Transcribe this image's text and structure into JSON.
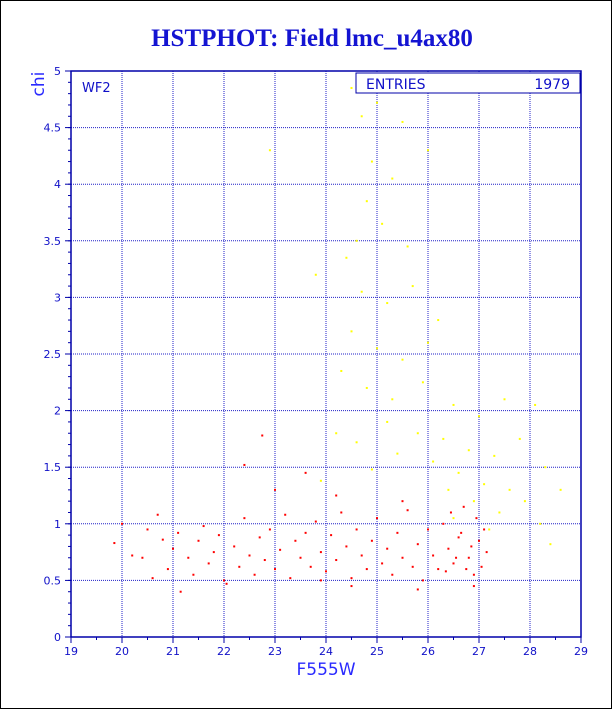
{
  "chart_data": {
    "type": "scatter",
    "title": "HSTPHOT: Field lmc_u4ax80",
    "xlabel": "F555W",
    "ylabel": "chi",
    "panel_label": "WF2",
    "stats_box": {
      "label": "ENTRIES",
      "value": "1979"
    },
    "xlim": [
      19,
      29
    ],
    "ylim": [
      0,
      5
    ],
    "xticks": [
      "19",
      "20",
      "21",
      "22",
      "23",
      "24",
      "25",
      "26",
      "27",
      "28",
      "29"
    ],
    "yticks": [
      "0",
      "0.5",
      "1",
      "1.5",
      "2",
      "2.5",
      "3",
      "3.5",
      "4",
      "4.5",
      "5"
    ],
    "grid": true,
    "colors": {
      "title": "#1414d2",
      "axis": "#0000aa",
      "grid": "#2020c8",
      "series_red": "#ff0000",
      "series_yellow": "#ffff00"
    },
    "series": [
      {
        "color": "#ff0000",
        "points": [
          [
            19.85,
            0.83
          ],
          [
            20.0,
            1.0
          ],
          [
            20.2,
            0.72
          ],
          [
            20.4,
            0.7
          ],
          [
            20.5,
            0.95
          ],
          [
            20.6,
            0.52
          ],
          [
            20.7,
            1.08
          ],
          [
            20.8,
            0.86
          ],
          [
            20.9,
            0.6
          ],
          [
            21.0,
            0.78
          ],
          [
            21.1,
            0.92
          ],
          [
            21.15,
            0.4
          ],
          [
            21.3,
            0.7
          ],
          [
            21.4,
            0.55
          ],
          [
            21.5,
            0.85
          ],
          [
            21.6,
            0.98
          ],
          [
            21.7,
            0.65
          ],
          [
            21.8,
            0.75
          ],
          [
            21.9,
            0.9
          ],
          [
            22.0,
            0.5
          ],
          [
            22.05,
            0.47
          ],
          [
            22.2,
            0.8
          ],
          [
            22.3,
            0.62
          ],
          [
            22.4,
            1.05
          ],
          [
            22.5,
            0.72
          ],
          [
            22.6,
            0.55
          ],
          [
            22.7,
            0.88
          ],
          [
            22.75,
            1.78
          ],
          [
            22.8,
            0.68
          ],
          [
            22.9,
            0.95
          ],
          [
            23.0,
            0.6
          ],
          [
            23.1,
            0.77
          ],
          [
            23.2,
            1.08
          ],
          [
            23.3,
            0.52
          ],
          [
            23.4,
            0.85
          ],
          [
            23.5,
            0.7
          ],
          [
            23.6,
            0.92
          ],
          [
            23.7,
            0.62
          ],
          [
            23.8,
            1.02
          ],
          [
            23.9,
            0.75
          ],
          [
            24.0,
            0.58
          ],
          [
            24.1,
            0.9
          ],
          [
            24.2,
            0.68
          ],
          [
            24.3,
            1.1
          ],
          [
            24.4,
            0.8
          ],
          [
            24.5,
            0.52
          ],
          [
            24.6,
            0.95
          ],
          [
            24.7,
            0.72
          ],
          [
            24.8,
            0.6
          ],
          [
            24.9,
            0.85
          ],
          [
            25.0,
            1.05
          ],
          [
            25.1,
            0.65
          ],
          [
            25.2,
            0.78
          ],
          [
            25.3,
            0.55
          ],
          [
            25.4,
            0.92
          ],
          [
            25.5,
            0.7
          ],
          [
            25.6,
            1.12
          ],
          [
            25.7,
            0.62
          ],
          [
            25.8,
            0.82
          ],
          [
            25.9,
            0.5
          ],
          [
            26.0,
            0.95
          ],
          [
            26.1,
            0.72
          ],
          [
            26.2,
            0.6
          ],
          [
            26.3,
            1.0
          ],
          [
            26.4,
            0.78
          ],
          [
            26.5,
            0.65
          ],
          [
            26.6,
            0.88
          ],
          [
            26.7,
            1.15
          ],
          [
            26.8,
            0.7
          ],
          [
            26.9,
            0.55
          ],
          [
            27.0,
            0.85
          ],
          [
            27.05,
            0.62
          ],
          [
            27.1,
            0.95
          ],
          [
            27.15,
            0.75
          ],
          [
            26.95,
            1.05
          ],
          [
            26.85,
            0.8
          ],
          [
            26.75,
            0.6
          ],
          [
            26.65,
            0.92
          ],
          [
            26.55,
            0.7
          ],
          [
            26.45,
            1.1
          ],
          [
            26.35,
            0.58
          ],
          [
            23.0,
            1.3
          ],
          [
            24.2,
            1.25
          ],
          [
            25.5,
            1.2
          ],
          [
            22.4,
            1.52
          ],
          [
            23.6,
            1.45
          ],
          [
            26.9,
            0.45
          ],
          [
            25.8,
            0.42
          ],
          [
            24.5,
            0.45
          ],
          [
            23.9,
            0.5
          ]
        ]
      },
      {
        "color": "#ffff00",
        "points": [
          [
            24.5,
            4.85
          ],
          [
            24.7,
            4.6
          ],
          [
            25.0,
            4.72
          ],
          [
            25.5,
            4.55
          ],
          [
            24.9,
            4.2
          ],
          [
            25.3,
            4.05
          ],
          [
            26.0,
            4.3
          ],
          [
            24.8,
            3.85
          ],
          [
            25.1,
            3.65
          ],
          [
            25.6,
            3.45
          ],
          [
            24.4,
            3.35
          ],
          [
            23.8,
            3.2
          ],
          [
            24.7,
            3.05
          ],
          [
            25.2,
            2.95
          ],
          [
            25.7,
            3.1
          ],
          [
            26.2,
            2.8
          ],
          [
            24.5,
            2.7
          ],
          [
            25.0,
            2.55
          ],
          [
            25.5,
            2.45
          ],
          [
            26.0,
            2.6
          ],
          [
            24.3,
            2.35
          ],
          [
            24.8,
            2.2
          ],
          [
            25.3,
            2.1
          ],
          [
            25.9,
            2.25
          ],
          [
            26.5,
            2.05
          ],
          [
            27.0,
            1.95
          ],
          [
            27.5,
            2.1
          ],
          [
            28.1,
            2.05
          ],
          [
            24.2,
            1.8
          ],
          [
            24.6,
            1.72
          ],
          [
            25.2,
            1.9
          ],
          [
            25.8,
            1.8
          ],
          [
            26.3,
            1.75
          ],
          [
            26.8,
            1.65
          ],
          [
            27.3,
            1.6
          ],
          [
            27.8,
            1.75
          ],
          [
            28.3,
            1.5
          ],
          [
            28.6,
            1.3
          ],
          [
            26.1,
            1.55
          ],
          [
            26.6,
            1.45
          ],
          [
            27.1,
            1.35
          ],
          [
            27.6,
            1.3
          ],
          [
            26.4,
            1.3
          ],
          [
            26.9,
            1.2
          ],
          [
            27.4,
            1.1
          ],
          [
            27.9,
            1.2
          ],
          [
            28.2,
            1.0
          ],
          [
            28.4,
            0.82
          ],
          [
            27.2,
            0.95
          ],
          [
            26.5,
            1.05
          ],
          [
            25.4,
            1.62
          ],
          [
            24.9,
            1.48
          ],
          [
            23.9,
            1.38
          ],
          [
            22.9,
            4.3
          ],
          [
            24.6,
            3.5
          ]
        ]
      }
    ]
  }
}
